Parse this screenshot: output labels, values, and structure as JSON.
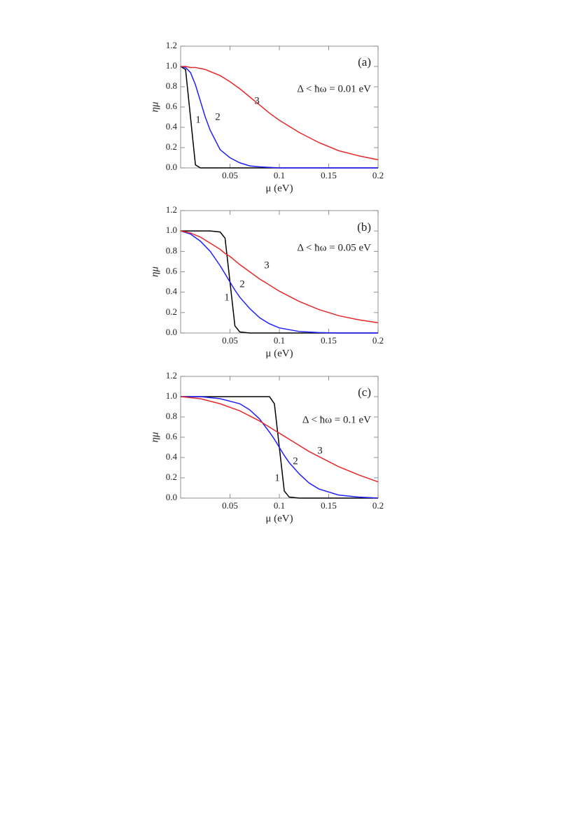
{
  "chart_data": [
    {
      "type": "line",
      "panel_label": "(a)",
      "annotation": "Δ < ħω = 0.01 eV",
      "x_label": "μ (eV)",
      "y_label": "ημ",
      "x": [
        0,
        0.005,
        0.01,
        0.015,
        0.02,
        0.025,
        0.03,
        0.04,
        0.05,
        0.06,
        0.07,
        0.08,
        0.09,
        0.1,
        0.12,
        0.14,
        0.16,
        0.18,
        0.2
      ],
      "series": [
        {
          "name": "1",
          "color": "#000000",
          "values": [
            1,
            0.97,
            0.5,
            0.03,
            0,
            0,
            0,
            0,
            0,
            0,
            0,
            0,
            0,
            0,
            0,
            0,
            0,
            0,
            0
          ]
        },
        {
          "name": "2",
          "color": "#1f1fff",
          "values": [
            1,
            0.99,
            0.94,
            0.82,
            0.66,
            0.5,
            0.37,
            0.18,
            0.1,
            0.05,
            0.02,
            0.01,
            0.005,
            0,
            0,
            0,
            0,
            0,
            0
          ]
        },
        {
          "name": "3",
          "color": "#e62828",
          "values": [
            1,
            1,
            0.99,
            0.99,
            0.98,
            0.97,
            0.95,
            0.91,
            0.85,
            0.78,
            0.7,
            0.62,
            0.54,
            0.47,
            0.35,
            0.25,
            0.17,
            0.12,
            0.08
          ]
        }
      ],
      "xlim": [
        0,
        0.2
      ],
      "ylim": [
        0,
        1.2
      ],
      "xticks": [
        0.05,
        0.1,
        0.15,
        0.2
      ],
      "yticks": [
        {
          "value": 0,
          "label": "0.0"
        },
        0.2,
        0.4,
        0.6,
        0.8,
        {
          "value": 1,
          "label": "1.0"
        },
        1.2
      ]
    },
    {
      "type": "line",
      "panel_label": "(b)",
      "annotation": "Δ < ħω = 0.05 eV",
      "x_label": "μ (eV)",
      "y_label": "ημ",
      "x": [
        0,
        0.01,
        0.02,
        0.03,
        0.04,
        0.045,
        0.05,
        0.055,
        0.06,
        0.07,
        0.08,
        0.09,
        0.1,
        0.12,
        0.14,
        0.16,
        0.18,
        0.2
      ],
      "series": [
        {
          "name": "1",
          "color": "#000000",
          "values": [
            1,
            1,
            1,
            1,
            0.99,
            0.93,
            0.5,
            0.07,
            0.01,
            0,
            0,
            0,
            0,
            0,
            0,
            0,
            0,
            0
          ]
        },
        {
          "name": "2",
          "color": "#1f1fff",
          "values": [
            1,
            0.97,
            0.9,
            0.8,
            0.66,
            0.58,
            0.5,
            0.42,
            0.35,
            0.24,
            0.15,
            0.09,
            0.05,
            0.015,
            0.004,
            0,
            0,
            0
          ]
        },
        {
          "name": "3",
          "color": "#e62828",
          "values": [
            1,
            0.98,
            0.94,
            0.88,
            0.82,
            0.78,
            0.75,
            0.71,
            0.67,
            0.6,
            0.53,
            0.47,
            0.41,
            0.31,
            0.23,
            0.17,
            0.13,
            0.1
          ]
        }
      ],
      "xlim": [
        0,
        0.2
      ],
      "ylim": [
        0,
        1.2
      ],
      "xticks": [
        0.05,
        0.1,
        0.15,
        0.2
      ],
      "yticks": [
        {
          "value": 0,
          "label": "0.0"
        },
        0.2,
        0.4,
        0.6,
        0.8,
        {
          "value": 1,
          "label": "1.0"
        },
        1.2
      ]
    },
    {
      "type": "line",
      "panel_label": "(c)",
      "annotation": "Δ < ħω = 0.1 eV",
      "x_label": "μ (eV)",
      "y_label": "ημ",
      "x": [
        0,
        0.02,
        0.04,
        0.06,
        0.07,
        0.08,
        0.09,
        0.095,
        0.1,
        0.105,
        0.11,
        0.12,
        0.13,
        0.14,
        0.16,
        0.18,
        0.2
      ],
      "series": [
        {
          "name": "1",
          "color": "#000000",
          "values": [
            1,
            1,
            1,
            1,
            1,
            1,
            1,
            0.93,
            0.5,
            0.07,
            0.01,
            0,
            0,
            0,
            0,
            0,
            0
          ]
        },
        {
          "name": "2",
          "color": "#1f1fff",
          "values": [
            1,
            1,
            0.98,
            0.93,
            0.87,
            0.78,
            0.65,
            0.58,
            0.5,
            0.42,
            0.35,
            0.24,
            0.15,
            0.09,
            0.03,
            0.01,
            0
          ]
        },
        {
          "name": "3",
          "color": "#e62828",
          "values": [
            1,
            0.98,
            0.93,
            0.86,
            0.81,
            0.76,
            0.7,
            0.67,
            0.64,
            0.61,
            0.58,
            0.52,
            0.46,
            0.41,
            0.31,
            0.23,
            0.16
          ]
        }
      ],
      "xlim": [
        0,
        0.2
      ],
      "ylim": [
        0,
        1.2
      ],
      "xticks": [
        0.05,
        0.1,
        0.15,
        0.2
      ],
      "yticks": [
        {
          "value": 0,
          "label": "0.0"
        },
        0.2,
        0.4,
        0.6,
        0.8,
        {
          "value": 1,
          "label": "1.0"
        },
        1.2
      ]
    }
  ]
}
